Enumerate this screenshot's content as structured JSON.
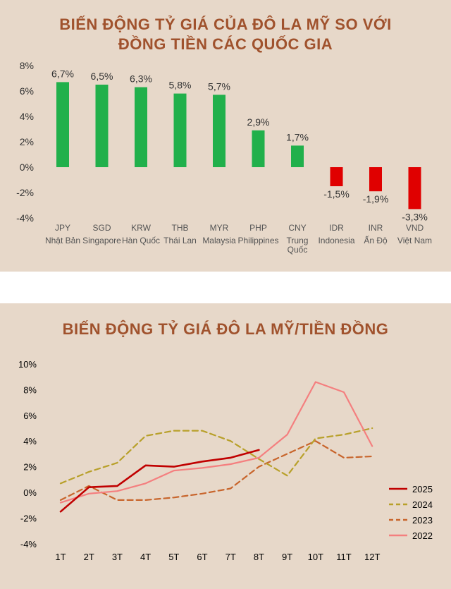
{
  "top": {
    "title_line1": "BIẾN ĐỘNG TỶ GIÁ CỦA ĐÔ LA MỸ SO VỚI",
    "title_line2": "ĐỒNG TIỀN CÁC QUỐC GIA"
  },
  "bottom": {
    "title": "BIẾN ĐỘNG TỶ GIÁ ĐÔ LA MỸ/TIỀN ĐỒNG"
  },
  "colors": {
    "positive_bar": "#21b04b",
    "negative_bar": "#e00000",
    "title": "#a0522d",
    "background": "#e7d8c9",
    "s2025": "#c00000",
    "s2024": "#b8a02a",
    "s2023": "#c8652c",
    "s2022": "#f47f7f"
  },
  "chart_data": [
    {
      "type": "bar",
      "title": "BIẾN ĐỘNG TỶ GIÁ CỦA ĐÔ LA MỸ SO VỚI ĐỒNG TIỀN CÁC QUỐC GIA",
      "categories": [
        "JPY",
        "SGD",
        "KRW",
        "THB",
        "MYR",
        "PHP",
        "CNY",
        "IDR",
        "INR",
        "VND"
      ],
      "category_names": [
        "Nhật Bản",
        "Singapore",
        "Hàn Quốc",
        "Thái Lan",
        "Malaysia",
        "Philippines",
        "Trung Quốc",
        "Indonesia",
        "Ấn Độ",
        "Việt Nam"
      ],
      "values": [
        6.7,
        6.5,
        6.3,
        5.8,
        5.7,
        2.9,
        1.7,
        -1.5,
        -1.9,
        -3.3
      ],
      "value_labels": [
        "6,7%",
        "6,5%",
        "6,3%",
        "5,8%",
        "5,7%",
        "2,9%",
        "1,7%",
        "-1,5%",
        "-1,9%",
        "-3,3%"
      ],
      "ylim": [
        -4,
        8
      ],
      "yticks": [
        8,
        6,
        4,
        2,
        0,
        -2,
        -4
      ],
      "ytick_labels": [
        "8%",
        "6%",
        "4%",
        "2%",
        "0%",
        "-2%",
        "-4%"
      ],
      "grid": false,
      "legend": "none"
    },
    {
      "type": "line",
      "title": "BIẾN ĐỘNG TỶ GIÁ ĐÔ LA MỸ/TIỀN ĐỒNG",
      "categories": [
        "1T",
        "2T",
        "3T",
        "4T",
        "5T",
        "6T",
        "7T",
        "8T",
        "9T",
        "10T",
        "11T",
        "12T"
      ],
      "ylim": [
        -4,
        10
      ],
      "yticks": [
        10,
        8,
        6,
        4,
        2,
        0,
        -2,
        -4
      ],
      "ytick_labels": [
        "10%",
        "8%",
        "6%",
        "4%",
        "2%",
        "0%",
        "-2%",
        "-4%"
      ],
      "grid": false,
      "legend": "right",
      "series": [
        {
          "name": "2025",
          "style": "solid",
          "width": 2.6,
          "values": [
            -1.5,
            0.4,
            0.5,
            2.1,
            2.0,
            2.4,
            2.7,
            3.3,
            null,
            null,
            null,
            null
          ]
        },
        {
          "name": "2024",
          "style": "dashed",
          "width": 2.2,
          "values": [
            0.7,
            1.6,
            2.3,
            4.4,
            4.8,
            4.8,
            4.0,
            2.6,
            1.3,
            4.2,
            4.5,
            5.0
          ]
        },
        {
          "name": "2023",
          "style": "dashed",
          "width": 2.2,
          "values": [
            -0.6,
            0.5,
            -0.6,
            -0.6,
            -0.4,
            -0.1,
            0.3,
            2.0,
            3.0,
            4.0,
            2.7,
            2.8
          ]
        },
        {
          "name": "2022",
          "style": "solid",
          "width": 2.2,
          "values": [
            -0.8,
            -0.1,
            0.1,
            0.7,
            1.7,
            1.9,
            2.2,
            2.7,
            4.5,
            8.6,
            7.8,
            3.6
          ]
        }
      ]
    }
  ]
}
